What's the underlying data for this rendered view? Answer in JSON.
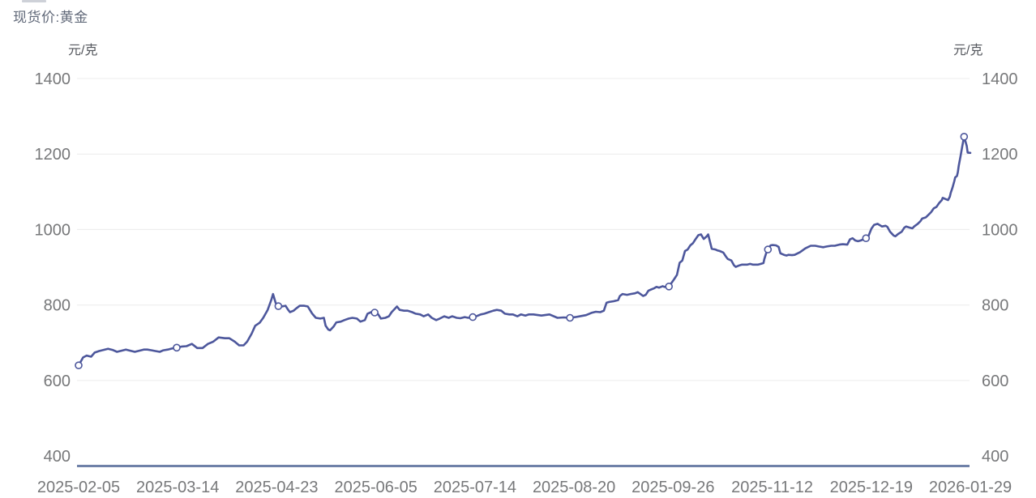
{
  "chart_data": {
    "type": "line",
    "title": "现货价:黄金",
    "unit_left": "元/克",
    "unit_right": "元/克",
    "xlabel": "",
    "ylabel": "元/克",
    "ylim": [
      400,
      1400
    ],
    "yticks": [
      400,
      600,
      800,
      1000,
      1200,
      1400
    ],
    "xticks": [
      "2025-02-05",
      "2025-03-14",
      "2025-04-23",
      "2025-06-05",
      "2025-07-14",
      "2025-08-20",
      "2025-09-26",
      "2025-11-12",
      "2025-12-19",
      "2026-01-29"
    ],
    "grid": "horizontal-only",
    "legend": "none",
    "axes_mirrored": true,
    "colors": {
      "line": "#4d579c",
      "marker_fill": "#ffffff",
      "axis_line": "#6f81a8",
      "gridline": "#ececec",
      "tick_text": "#77787a",
      "title_text": "#606878",
      "unit_text": "#53565c",
      "background": "#ffffff"
    },
    "series": [
      {
        "name": "现货价:黄金",
        "points_format": "[x_percent_along_axis, price_yuan_per_gram]",
        "points": [
          [
            0,
            640
          ],
          [
            0.5,
            661
          ],
          [
            0.9,
            666
          ],
          [
            1.4,
            663
          ],
          [
            1.8,
            674
          ],
          [
            2.3,
            678
          ],
          [
            2.8,
            681
          ],
          [
            3.3,
            684
          ],
          [
            3.8,
            681
          ],
          [
            4.3,
            676
          ],
          [
            4.8,
            679
          ],
          [
            5.3,
            682
          ],
          [
            5.8,
            679
          ],
          [
            6.3,
            676
          ],
          [
            6.8,
            679
          ],
          [
            7.3,
            682
          ],
          [
            7.7,
            682
          ],
          [
            8.2,
            680
          ],
          [
            8.6,
            678
          ],
          [
            9.1,
            676
          ],
          [
            9.5,
            680
          ],
          [
            10,
            682
          ],
          [
            10.5,
            685
          ],
          [
            11,
            687
          ],
          [
            11.6,
            690
          ],
          [
            12.1,
            691
          ],
          [
            12.7,
            697
          ],
          [
            13.3,
            686
          ],
          [
            13.9,
            686
          ],
          [
            14.5,
            697
          ],
          [
            15.1,
            703
          ],
          [
            15.7,
            714
          ],
          [
            16.4,
            712
          ],
          [
            16.9,
            712
          ],
          [
            17.5,
            703
          ],
          [
            18,
            693
          ],
          [
            18.5,
            693
          ],
          [
            18.9,
            703
          ],
          [
            19.4,
            724
          ],
          [
            19.8,
            745
          ],
          [
            20.3,
            753
          ],
          [
            20.7,
            766
          ],
          [
            21.2,
            787
          ],
          [
            21.6,
            813
          ],
          [
            21.8,
            829
          ],
          [
            22.1,
            805
          ],
          [
            22.4,
            797
          ],
          [
            22.6,
            802
          ],
          [
            22.8,
            796
          ],
          [
            23.2,
            798
          ],
          [
            23.5,
            787
          ],
          [
            23.7,
            781
          ],
          [
            24.1,
            785
          ],
          [
            24.4,
            791
          ],
          [
            24.8,
            798
          ],
          [
            25.3,
            798
          ],
          [
            25.7,
            796
          ],
          [
            26.2,
            777
          ],
          [
            26.6,
            766
          ],
          [
            27.1,
            764
          ],
          [
            27.5,
            766
          ],
          [
            27.7,
            745
          ],
          [
            28,
            735
          ],
          [
            28.2,
            733
          ],
          [
            28.6,
            743
          ],
          [
            28.9,
            754
          ],
          [
            29.4,
            756
          ],
          [
            29.8,
            760
          ],
          [
            30.3,
            764
          ],
          [
            30.7,
            766
          ],
          [
            31.2,
            764
          ],
          [
            31.6,
            756
          ],
          [
            32.1,
            760
          ],
          [
            32.4,
            777
          ],
          [
            32.8,
            781
          ],
          [
            33.2,
            780
          ],
          [
            33.6,
            775
          ],
          [
            33.9,
            764
          ],
          [
            34.4,
            766
          ],
          [
            34.8,
            770
          ],
          [
            35.1,
            781
          ],
          [
            35.5,
            791
          ],
          [
            35.7,
            796
          ],
          [
            36,
            787
          ],
          [
            36.5,
            785
          ],
          [
            36.9,
            785
          ],
          [
            37.4,
            781
          ],
          [
            37.8,
            777
          ],
          [
            38.3,
            775
          ],
          [
            38.7,
            770
          ],
          [
            39.2,
            775
          ],
          [
            39.6,
            766
          ],
          [
            40.1,
            760
          ],
          [
            40.5,
            764
          ],
          [
            41,
            770
          ],
          [
            41.5,
            766
          ],
          [
            41.9,
            770
          ],
          [
            42.4,
            766
          ],
          [
            42.8,
            765
          ],
          [
            43.3,
            768
          ],
          [
            43.7,
            766
          ],
          [
            44.2,
            768
          ],
          [
            44.6,
            770
          ],
          [
            45.1,
            775
          ],
          [
            45.5,
            777
          ],
          [
            46,
            781
          ],
          [
            46.5,
            785
          ],
          [
            46.9,
            787
          ],
          [
            47.4,
            785
          ],
          [
            47.8,
            777
          ],
          [
            48.3,
            775
          ],
          [
            48.7,
            775
          ],
          [
            49.2,
            770
          ],
          [
            49.6,
            775
          ],
          [
            50.1,
            772
          ],
          [
            50.5,
            775
          ],
          [
            51,
            775
          ],
          [
            51.9,
            772
          ],
          [
            52.8,
            775
          ],
          [
            53.7,
            766
          ],
          [
            54.4,
            767
          ],
          [
            55.1,
            766
          ],
          [
            55.7,
            768
          ],
          [
            56.4,
            771
          ],
          [
            56.9,
            773
          ],
          [
            57.5,
            779
          ],
          [
            58,
            782
          ],
          [
            58.5,
            781
          ],
          [
            58.9,
            785
          ],
          [
            59.2,
            806
          ],
          [
            59.5,
            808
          ],
          [
            60,
            810
          ],
          [
            60.5,
            813
          ],
          [
            60.7,
            824
          ],
          [
            61,
            829
          ],
          [
            61.5,
            827
          ],
          [
            61.9,
            829
          ],
          [
            62.4,
            831
          ],
          [
            62.7,
            834
          ],
          [
            63,
            829
          ],
          [
            63.3,
            824
          ],
          [
            63.6,
            827
          ],
          [
            63.9,
            838
          ],
          [
            64.2,
            841
          ],
          [
            64.5,
            844
          ],
          [
            64.8,
            848
          ],
          [
            65.1,
            846
          ],
          [
            65.5,
            850
          ],
          [
            65.7,
            848
          ],
          [
            66.2,
            849
          ],
          [
            66.5,
            859
          ],
          [
            66.8,
            869
          ],
          [
            67.1,
            880
          ],
          [
            67.4,
            912
          ],
          [
            67.7,
            918
          ],
          [
            68,
            943
          ],
          [
            68.3,
            947
          ],
          [
            68.6,
            958
          ],
          [
            68.9,
            964
          ],
          [
            69.2,
            975
          ],
          [
            69.5,
            985
          ],
          [
            69.8,
            987
          ],
          [
            70.1,
            975
          ],
          [
            70.4,
            981
          ],
          [
            70.6,
            987
          ],
          [
            70.8,
            968
          ],
          [
            71,
            949
          ],
          [
            71.4,
            947
          ],
          [
            71.6,
            945
          ],
          [
            71.9,
            943
          ],
          [
            72.3,
            939
          ],
          [
            72.6,
            928
          ],
          [
            72.8,
            922
          ],
          [
            73.2,
            918
          ],
          [
            73.5,
            905
          ],
          [
            73.7,
            901
          ],
          [
            74.1,
            905
          ],
          [
            74.4,
            907
          ],
          [
            75,
            907
          ],
          [
            75.3,
            909
          ],
          [
            75.6,
            907
          ],
          [
            76.2,
            907
          ],
          [
            76.5,
            909
          ],
          [
            76.8,
            911
          ],
          [
            76.9,
            922
          ],
          [
            77.1,
            937
          ],
          [
            77.3,
            947
          ],
          [
            77.6,
            958
          ],
          [
            77.8,
            959
          ],
          [
            78.2,
            958
          ],
          [
            78.5,
            954
          ],
          [
            78.7,
            937
          ],
          [
            79.1,
            933
          ],
          [
            79.4,
            931
          ],
          [
            79.6,
            933
          ],
          [
            80,
            932
          ],
          [
            80.3,
            933
          ],
          [
            80.9,
            940
          ],
          [
            81.5,
            950
          ],
          [
            82.1,
            957
          ],
          [
            82.6,
            957
          ],
          [
            83,
            955
          ],
          [
            83.5,
            953
          ],
          [
            83.9,
            955
          ],
          [
            84.4,
            957
          ],
          [
            84.8,
            957
          ],
          [
            85.3,
            960
          ],
          [
            85.7,
            961
          ],
          [
            86.2,
            960
          ],
          [
            86.5,
            974
          ],
          [
            86.8,
            977
          ],
          [
            87.1,
            971
          ],
          [
            87.4,
            969
          ],
          [
            87.7,
            971
          ],
          [
            88.3,
            977
          ],
          [
            88.6,
            984
          ],
          [
            88.9,
            1002
          ],
          [
            89.2,
            1012
          ],
          [
            89.6,
            1015
          ],
          [
            89.8,
            1012
          ],
          [
            90.1,
            1008
          ],
          [
            90.5,
            1010
          ],
          [
            90.7,
            1007
          ],
          [
            91,
            994
          ],
          [
            91.4,
            984
          ],
          [
            91.6,
            982
          ],
          [
            91.9,
            988
          ],
          [
            92.3,
            994
          ],
          [
            92.6,
            1005
          ],
          [
            92.8,
            1008
          ],
          [
            93.2,
            1005
          ],
          [
            93.5,
            1003
          ],
          [
            93.7,
            1008
          ],
          [
            94.1,
            1015
          ],
          [
            94.4,
            1022
          ],
          [
            94.6,
            1029
          ],
          [
            95,
            1032
          ],
          [
            95.3,
            1039
          ],
          [
            95.6,
            1046
          ],
          [
            95.9,
            1056
          ],
          [
            96.2,
            1060
          ],
          [
            96.5,
            1070
          ],
          [
            96.8,
            1078
          ],
          [
            96.9,
            1084
          ],
          [
            97.3,
            1080
          ],
          [
            97.5,
            1078
          ],
          [
            97.7,
            1087
          ],
          [
            97.8,
            1097
          ],
          [
            98,
            1111
          ],
          [
            98.2,
            1128
          ],
          [
            98.3,
            1138
          ],
          [
            98.5,
            1142
          ],
          [
            98.6,
            1152
          ],
          [
            98.7,
            1169
          ],
          [
            98.9,
            1194
          ],
          [
            99.1,
            1221
          ],
          [
            99.3,
            1246
          ],
          [
            99.6,
            1221
          ],
          [
            99.7,
            1204
          ],
          [
            100,
            1203
          ]
        ]
      }
    ],
    "markers": [
      [
        0,
        640
      ],
      [
        11,
        687
      ],
      [
        22.4,
        797
      ],
      [
        33.2,
        780
      ],
      [
        44.2,
        768
      ],
      [
        55.1,
        766
      ],
      [
        66.2,
        849
      ],
      [
        77.3,
        947
      ],
      [
        88.3,
        977
      ],
      [
        99.3,
        1246
      ]
    ]
  }
}
